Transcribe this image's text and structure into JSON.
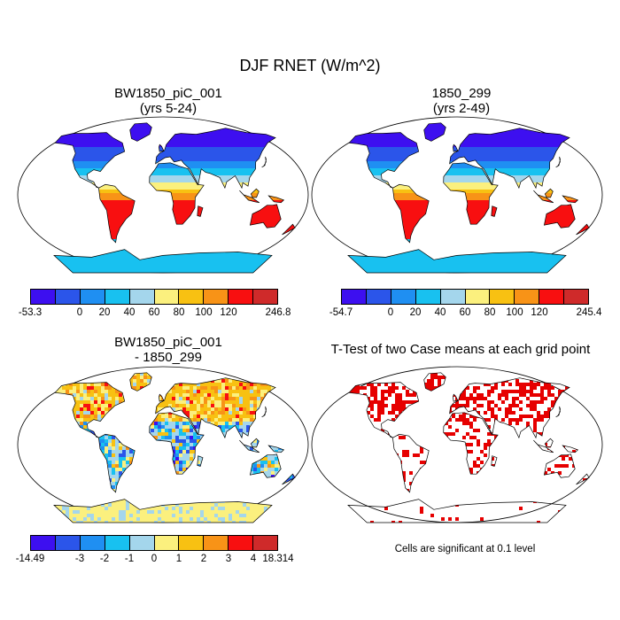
{
  "title": "DJF RNET (W/m^2)",
  "panels": [
    {
      "id": "case",
      "title_line1": "BW1850_piC_001",
      "title_line2": "(yrs 5-24)"
    },
    {
      "id": "control",
      "title_line1": "1850_299",
      "title_line2": "(yrs 2-49)"
    },
    {
      "id": "diff",
      "title_line1": "BW1850_piC_001",
      "title_line2": "- 1850_299"
    },
    {
      "id": "ttest",
      "title_line1": "T-Test of two Case means at each grid point",
      "title_line2": ""
    }
  ],
  "colorbars": {
    "top_left": {
      "colors": [
        "#3d0ff0",
        "#2b55ea",
        "#1f8ff2",
        "#18c1f0",
        "#a4d6ec",
        "#fbf07e",
        "#f8c112",
        "#f89317",
        "#f80f10",
        "#cf2a2a"
      ],
      "labels": [
        "-53.3",
        "0",
        "20",
        "40",
        "60",
        "80",
        "100",
        "120",
        "246.8"
      ]
    },
    "top_right": {
      "colors": [
        "#3d0ff0",
        "#2b55ea",
        "#1f8ff2",
        "#18c1f0",
        "#a4d6ec",
        "#fbf07e",
        "#f8c112",
        "#f89317",
        "#f80f10",
        "#cf2a2a"
      ],
      "labels": [
        "-54.7",
        "0",
        "20",
        "40",
        "60",
        "80",
        "100",
        "120",
        "245.4"
      ]
    },
    "bottom_left": {
      "colors": [
        "#3d0ff0",
        "#2b55ea",
        "#1f8ff2",
        "#18c1f0",
        "#a4d6ec",
        "#fbf07e",
        "#f8c112",
        "#f89317",
        "#f80f10",
        "#cf2a2a"
      ],
      "labels": [
        "-14.49",
        "-3",
        "-2",
        "-1",
        "0",
        "1",
        "2",
        "3",
        "4",
        "18.314"
      ]
    }
  },
  "significance_note": "Cells are significant at 0.1 level",
  "significance_color": "#e60000",
  "map_palettes": {
    "rnet": [
      "#3d0ff0",
      "#2b55ea",
      "#1f8ff2",
      "#18c1f0",
      "#a4d6ec",
      "#fbf07e",
      "#f8c112",
      "#f89317",
      "#f80f10",
      "#cf2a2a"
    ],
    "diff": [
      "#3d0ff0",
      "#2b55ea",
      "#1f8ff2",
      "#18c1f0",
      "#a4d6ec",
      "#fbf07e",
      "#f8c112",
      "#f89317",
      "#f80f10",
      "#cf2a2a"
    ]
  }
}
